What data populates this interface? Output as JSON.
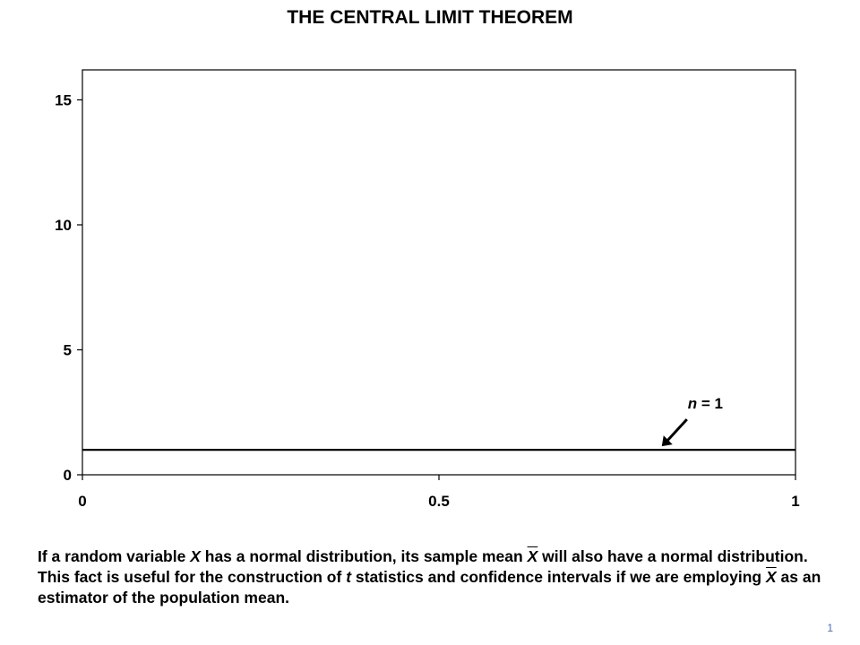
{
  "slide": {
    "title": "THE CENTRAL LIMIT THEOREM",
    "page_number": "1"
  },
  "caption": {
    "p1": "If a random variable ",
    "x": "X",
    "p2": " has a normal distribution, its sample mean ",
    "xbar1": "X",
    "p3": " will also have a normal distribution.  This fact is useful for the construction of ",
    "t": "t",
    "p4": " statistics and confidence intervals if we are employing ",
    "xbar2": "X",
    "p5": " as an estimator of the population mean."
  },
  "chart_data": {
    "type": "line",
    "x": [
      0,
      0.05,
      0.1,
      0.15,
      0.2,
      0.25,
      0.3,
      0.35,
      0.4,
      0.45,
      0.5,
      0.55,
      0.6,
      0.65,
      0.7,
      0.75,
      0.8,
      0.85,
      0.9,
      0.95,
      1
    ],
    "series": [
      {
        "name": "",
        "values": [
          1,
          1,
          1,
          1,
          1,
          1,
          1,
          1,
          1,
          1,
          1,
          1,
          1,
          1,
          1,
          1,
          1,
          1,
          1,
          1,
          1
        ]
      }
    ],
    "xlim": [
      0,
      1
    ],
    "ylim": [
      0,
      16.2
    ],
    "xticks": [
      0,
      0.5,
      1
    ],
    "xtick_labels": [
      "0",
      "0.5",
      "1"
    ],
    "yticks": [
      0,
      5,
      10,
      15
    ],
    "ytick_labels": [
      "0",
      "5",
      "10",
      "15"
    ],
    "grid": false,
    "annotation": {
      "label_italic": "n",
      "label_rest": " = 1",
      "x": 0.81,
      "y": 1
    },
    "colors": {
      "line": "#000000",
      "axis": "#000000"
    }
  }
}
